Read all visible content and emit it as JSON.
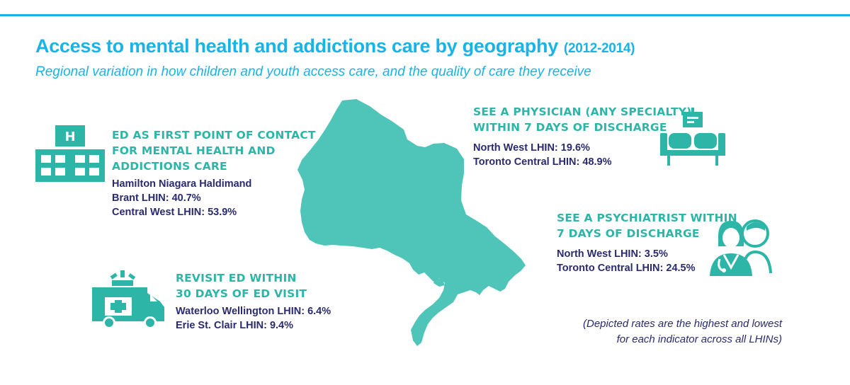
{
  "header": {
    "title": "Access to mental health and addictions care by geography",
    "years": "(2012-2014)",
    "subtitle": "Regional variation in how children and youth access care, and the quality of care they receive"
  },
  "colors": {
    "accent_blue": "#19b3e6",
    "teal": "#2db5a8",
    "map_fill": "#4fc4b8",
    "navy": "#2a2b6e"
  },
  "ed_first_contact": {
    "icon": "hospital-icon",
    "heading": [
      "ED AS FIRST POINT OF CONTACT",
      "FOR MENTAL HEALTH AND",
      "ADDICTIONS CARE"
    ],
    "stats": [
      "Hamilton Niagara Haldimand",
      "Brant LHIN: 40.7%",
      "Central West LHIN: 53.9%"
    ]
  },
  "revisit_ed": {
    "icon": "ambulance-icon",
    "heading": [
      "REVISIT ED WITHIN",
      "30 DAYS OF ED VISIT"
    ],
    "stats": [
      "Waterloo Wellington LHIN: 6.4%",
      "Erie St. Clair LHIN: 9.4%"
    ]
  },
  "see_physician": {
    "icon": "waiting-room-icon",
    "heading": [
      "SEE A PHYSICIAN (ANY SPECIALTY)",
      "WITHIN 7 DAYS OF DISCHARGE"
    ],
    "stats": [
      "North West LHIN: 19.6%",
      "Toronto Central LHIN: 48.9%"
    ]
  },
  "see_psychiatrist": {
    "icon": "doctor-patient-icon",
    "heading": [
      "SEE A PSYCHIATRIST WITHIN",
      "7 DAYS OF DISCHARGE"
    ],
    "stats": [
      "North West LHIN: 3.5%",
      "Toronto Central LHIN: 24.5%"
    ]
  },
  "note": [
    "(Depicted rates are the highest and lowest",
    "for each indicator across all LHINs)"
  ]
}
